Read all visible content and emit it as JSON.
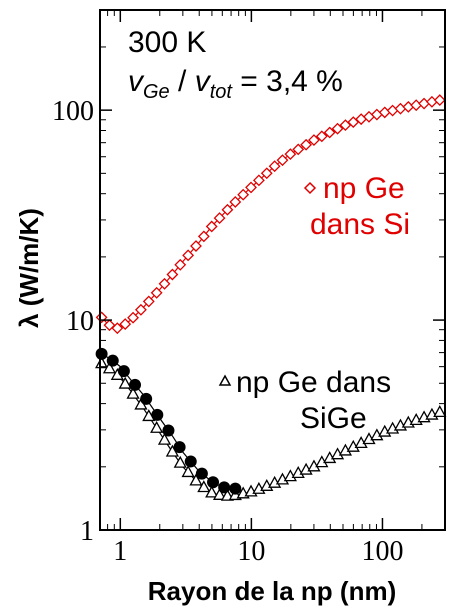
{
  "chart_data": {
    "type": "line",
    "title": "",
    "xlabel": "Rayon de la np (nm)",
    "ylabel": "λ (W/m/K)",
    "x_scale": "log",
    "y_scale": "log",
    "xlim": [
      0.7,
      300
    ],
    "ylim": [
      1,
      300
    ],
    "x_ticks": [
      {
        "value": 1,
        "label": "1"
      },
      {
        "value": 10,
        "label": "10"
      },
      {
        "value": 100,
        "label": "100"
      }
    ],
    "y_ticks": [
      {
        "value": 1,
        "label": "1"
      },
      {
        "value": 10,
        "label": "10"
      },
      {
        "value": 100,
        "label": "100"
      }
    ],
    "grid": false,
    "annotations": {
      "temperature": "300 K",
      "fraction": {
        "v1": "v",
        "sub1": "Ge",
        "slash": " / ",
        "v2": "v",
        "sub2": "tot",
        "value": " = 3,4 %"
      }
    },
    "series": [
      {
        "label_lines": [
          "np Ge",
          "dans Si"
        ],
        "color": "#e00000",
        "marker": "diamond-open",
        "x": [
          0.72,
          0.8,
          0.9,
          1.0,
          1.2,
          1.5,
          2,
          2.5,
          3,
          4,
          5,
          7,
          10,
          15,
          20,
          30,
          50,
          70,
          100,
          150,
          200,
          280
        ],
        "y": [
          10.3,
          9.6,
          9.1,
          9.2,
          10.0,
          11.5,
          14,
          16.5,
          19,
          23.5,
          28,
          35,
          43,
          54,
          62,
          72,
          84,
          91,
          97,
          103,
          107,
          112
        ]
      },
      {
        "label_lines": [
          "np Ge dans",
          "SiGe"
        ],
        "color": "#000000",
        "marker": "triangle-open",
        "x": [
          0.72,
          0.85,
          1.0,
          1.2,
          1.5,
          2,
          2.5,
          3,
          4,
          5,
          6,
          7,
          8,
          10,
          12,
          15,
          20,
          30,
          40,
          50,
          70,
          100,
          150,
          200,
          280
        ],
        "y": [
          6.2,
          5.8,
          5.3,
          4.6,
          3.8,
          2.9,
          2.35,
          2.0,
          1.65,
          1.5,
          1.45,
          1.45,
          1.47,
          1.52,
          1.58,
          1.67,
          1.8,
          2.0,
          2.2,
          2.35,
          2.6,
          2.9,
          3.2,
          3.4,
          3.65
        ]
      },
      {
        "label_lines": [],
        "color": "#000000",
        "marker": "circle-filled",
        "x": [
          0.72,
          0.85,
          1.0,
          1.2,
          1.5,
          2,
          2.5,
          3,
          4,
          5,
          6,
          7,
          8
        ],
        "y": [
          6.9,
          6.5,
          6.0,
          5.2,
          4.4,
          3.4,
          2.8,
          2.35,
          1.9,
          1.7,
          1.6,
          1.58,
          1.57
        ]
      }
    ]
  }
}
